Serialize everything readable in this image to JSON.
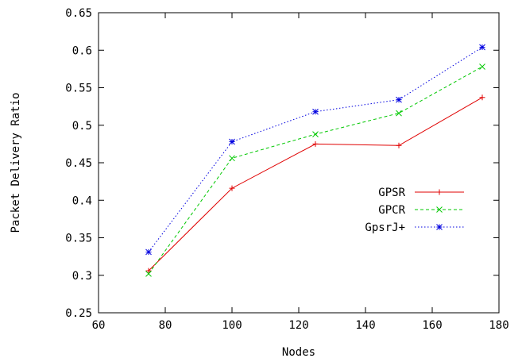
{
  "chart_data": {
    "type": "line",
    "title": "",
    "xlabel": "Nodes",
    "ylabel": "Packet Delivery Ratio",
    "xlim": [
      60,
      180
    ],
    "ylim": [
      0.25,
      0.65
    ],
    "xticks": [
      60,
      80,
      100,
      120,
      140,
      160,
      180
    ],
    "yticks": [
      0.25,
      0.3,
      0.35,
      0.4,
      0.45,
      0.5,
      0.55,
      0.6,
      0.65
    ],
    "xtick_labels": [
      "60",
      "80",
      "100",
      "120",
      "140",
      "160",
      "180"
    ],
    "ytick_labels": [
      "0.25",
      "0.3",
      "0.35",
      "0.4",
      "0.45",
      "0.5",
      "0.55",
      "0.6",
      "0.65"
    ],
    "grid": false,
    "legend_position": "center-right",
    "x": [
      75,
      100,
      125,
      150,
      175
    ],
    "series": [
      {
        "name": "GPSR",
        "values": [
          0.306,
          0.416,
          0.475,
          0.473,
          0.537
        ],
        "color": "#e00000",
        "dash": "solid",
        "marker": "plus"
      },
      {
        "name": "GPCR",
        "values": [
          0.302,
          0.456,
          0.488,
          0.516,
          0.578
        ],
        "color": "#00c800",
        "dash": "dashed",
        "marker": "cross"
      },
      {
        "name": "GpsrJ+",
        "values": [
          0.331,
          0.478,
          0.518,
          0.534,
          0.604
        ],
        "color": "#0000e0",
        "dash": "dotted",
        "marker": "star"
      }
    ]
  }
}
